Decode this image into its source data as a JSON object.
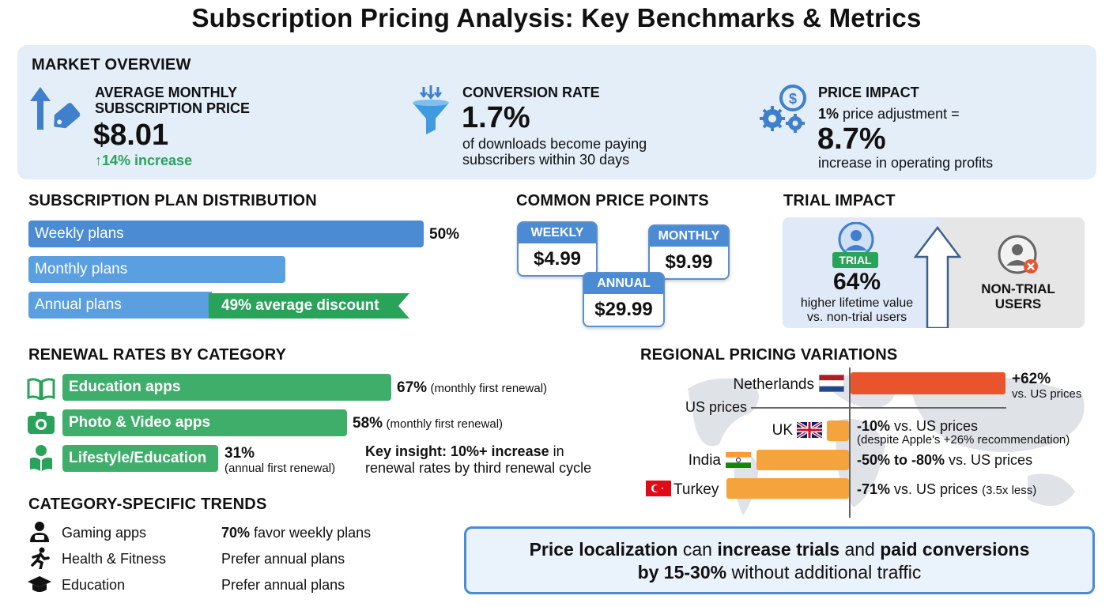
{
  "title": "Subscription Pricing Analysis: Key Benchmarks & Metrics",
  "market_overview": {
    "heading": "MARKET OVERVIEW",
    "avg_price": {
      "label_line1": "AVERAGE MONTHLY",
      "label_line2": "SUBSCRIPTION PRICE",
      "value": "$8.01",
      "change": "↑14% increase",
      "icon": "price-tag-up-icon"
    },
    "conversion": {
      "label": "CONVERSION RATE",
      "value": "1.7%",
      "desc_line1": "of downloads become paying",
      "desc_line2": "subscribers within 30 days",
      "icon": "funnel-icon"
    },
    "price_impact": {
      "label": "PRICE IMPACT",
      "line_bold": "1%",
      "line_rest": " price adjustment =",
      "value": "8.7%",
      "desc": "increase in operating profits",
      "icon": "gears-dollar-icon"
    }
  },
  "plan_distribution": {
    "heading": "SUBSCRIPTION PLAN DISTRIBUTION",
    "weekly": {
      "label": "Weekly plans",
      "pct": "50%",
      "share": 0.5
    },
    "monthly": {
      "label": "Monthly plans"
    },
    "annual": {
      "label": "Annual plans",
      "badge": "49% average discount"
    }
  },
  "price_points": {
    "heading": "COMMON PRICE POINTS",
    "weekly": {
      "label": "WEEKLY",
      "price": "$4.99"
    },
    "monthly": {
      "label": "MONTHLY",
      "price": "$9.99"
    },
    "annual": {
      "label": "ANNUAL",
      "price": "$29.99"
    }
  },
  "trial": {
    "heading": "TRIAL IMPACT",
    "badge": "TRIAL",
    "value": "64%",
    "desc_line1": "higher lifetime value",
    "desc_line2": "vs. non-trial users",
    "nontrial_line1": "NON-TRIAL",
    "nontrial_line2": "USERS",
    "colors": {
      "trial_badge": "#2aa35a",
      "non_trial_x": "#e8542c"
    }
  },
  "renewal": {
    "heading": "RENEWAL RATES BY CATEGORY",
    "rows": [
      {
        "label": "Education apps",
        "pct": "67%",
        "note": "(monthly first renewal)",
        "icon": "book-icon",
        "rate": 0.67
      },
      {
        "label": "Photo & Video apps",
        "pct": "58%",
        "note": "(monthly first renewal)",
        "icon": "camera-icon",
        "rate": 0.58
      },
      {
        "label": "Lifestyle/Education",
        "pct": "31%",
        "note": "(annual first renewal)",
        "icon": "reader-icon",
        "rate": 0.31
      }
    ],
    "insight_bold": "Key insight: 10%+ increase",
    "insight_rest1": " in",
    "insight_line2": "renewal rates by third renewal cycle"
  },
  "trends": {
    "heading": "CATEGORY-SPECIFIC TRENDS",
    "rows": [
      {
        "category": "Gaming apps",
        "bold": "70%",
        "text": " favor weekly plans",
        "icon": "gamer-icon"
      },
      {
        "category": "Health & Fitness",
        "bold": "",
        "text": "Prefer annual plans",
        "icon": "runner-icon"
      },
      {
        "category": "Education",
        "bold": "",
        "text": "Prefer annual plans",
        "icon": "graduation-cap-icon"
      }
    ]
  },
  "regional": {
    "heading": "REGIONAL PRICING VARIATIONS",
    "baseline_label": "US prices",
    "rows": [
      {
        "country": "Netherlands",
        "value": "+62%",
        "sub": "vs. US prices",
        "pct": 62
      },
      {
        "country": "UK",
        "value": "-10%",
        "rest": " vs. US prices",
        "sub": "(despite Apple's +26% recommendation)",
        "pct": -10
      },
      {
        "country": "India",
        "value": "-50% to -80%",
        "rest": " vs. US prices",
        "pct": -65
      },
      {
        "country": "Turkey",
        "value": "-71%",
        "rest": " vs. US prices",
        "small": "(3.5x less)",
        "pct": -71
      }
    ]
  },
  "callout": {
    "p1": "Price localization",
    "p2": " can ",
    "p3": "increase trials",
    "p4": " and ",
    "p5": "paid conversions",
    "p6": "by 15-30%",
    "p7": " without additional traffic"
  }
}
